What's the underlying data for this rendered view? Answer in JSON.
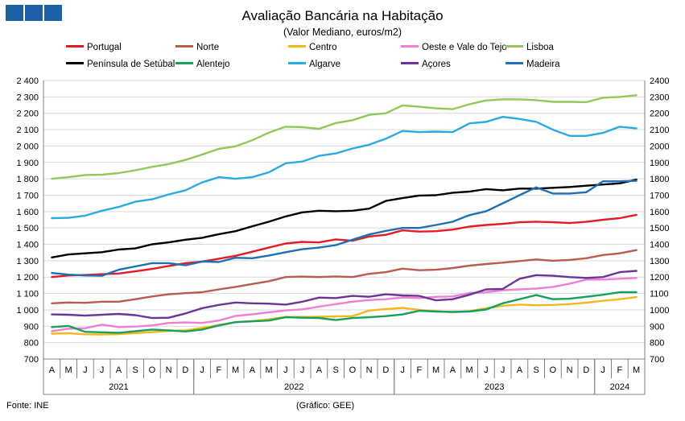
{
  "header": {
    "logo_icon": "ine-logo-squares",
    "title": "Avaliação Bancária na Habitação",
    "subtitle": "(Valor Mediano, euros/m2)"
  },
  "footer": {
    "source": "Fonte: INE",
    "credit": "(Gráfico: GEE)"
  },
  "chart_data": {
    "type": "line",
    "title": "Avaliação Bancária na Habitação",
    "subtitle": "(Valor Mediano, euros/m2)",
    "ylim": [
      700,
      2400
    ],
    "y_ticks_left": [
      "700",
      "800",
      "900",
      "1 000",
      "1 100",
      "1 200",
      "1 300",
      "1 400",
      "1 500",
      "1 600",
      "1 700",
      "1 800",
      "1 900",
      "2 000",
      "2 100",
      "2 200",
      "2 300",
      "2 400"
    ],
    "y_ticks_right": [
      "700",
      "800",
      "900",
      "1000",
      "1100",
      "1200",
      "1300",
      "1400",
      "1500",
      "1600",
      "1700",
      "1800",
      "1900",
      "2000",
      "2100",
      "2200",
      "2300",
      "2400"
    ],
    "categories": [
      "A",
      "M",
      "J",
      "J",
      "A",
      "S",
      "O",
      "N",
      "D",
      "J",
      "F",
      "M",
      "A",
      "M",
      "J",
      "J",
      "A",
      "S",
      "O",
      "N",
      "D",
      "J",
      "F",
      "M",
      "A",
      "M",
      "J",
      "J",
      "A",
      "S",
      "O",
      "N",
      "D",
      "J",
      "F",
      "M"
    ],
    "years": [
      {
        "label": "2021",
        "start": 0,
        "end": 9
      },
      {
        "label": "2022",
        "start": 9,
        "end": 21
      },
      {
        "label": "2023",
        "start": 21,
        "end": 33
      },
      {
        "label": "2024",
        "start": 33,
        "end": 36
      }
    ],
    "grid": true,
    "series": [
      {
        "name": "Portugal",
        "color": "#e31b23",
        "legend_col": 0,
        "legend_row": 0,
        "values": [
          1200,
          1210,
          1213,
          1218,
          1222,
          1235,
          1250,
          1268,
          1285,
          1295,
          1312,
          1330,
          1355,
          1380,
          1405,
          1415,
          1412,
          1430,
          1422,
          1448,
          1458,
          1485,
          1478,
          1480,
          1490,
          1508,
          1518,
          1525,
          1535,
          1538,
          1535,
          1530,
          1537,
          1550,
          1560,
          1580
        ]
      },
      {
        "name": "Norte",
        "color": "#bc5a4e",
        "legend_col": 1,
        "legend_row": 0,
        "values": [
          1040,
          1045,
          1043,
          1050,
          1050,
          1065,
          1082,
          1095,
          1102,
          1108,
          1125,
          1140,
          1158,
          1175,
          1200,
          1203,
          1200,
          1204,
          1200,
          1220,
          1230,
          1252,
          1242,
          1245,
          1255,
          1270,
          1280,
          1288,
          1298,
          1308,
          1300,
          1305,
          1315,
          1335,
          1345,
          1365
        ]
      },
      {
        "name": "Centro",
        "color": "#f2b81c",
        "legend_col": 2,
        "legend_row": 0,
        "values": [
          855,
          857,
          851,
          850,
          852,
          858,
          864,
          872,
          875,
          890,
          908,
          925,
          932,
          942,
          957,
          957,
          958,
          960,
          962,
          996,
          1005,
          1012,
          1000,
          992,
          985,
          992,
          1010,
          1025,
          1032,
          1028,
          1030,
          1035,
          1044,
          1055,
          1065,
          1078
        ]
      },
      {
        "name": "Oeste e Vale do Tejo",
        "color": "#ee7fd4",
        "legend_col": 3,
        "legend_row": 0,
        "values": [
          870,
          885,
          888,
          910,
          895,
          898,
          905,
          920,
          923,
          920,
          935,
          963,
          973,
          985,
          997,
          1003,
          1020,
          1035,
          1050,
          1060,
          1065,
          1076,
          1072,
          1080,
          1082,
          1103,
          1107,
          1120,
          1125,
          1130,
          1140,
          1160,
          1185,
          1185,
          1190,
          1195
        ]
      },
      {
        "name": "Lisboa",
        "color": "#92c85a",
        "legend_col": 4,
        "legend_row": 0,
        "values": [
          1800,
          1810,
          1823,
          1825,
          1835,
          1852,
          1873,
          1890,
          1915,
          1948,
          1983,
          1998,
          2035,
          2082,
          2118,
          2115,
          2105,
          2140,
          2158,
          2190,
          2200,
          2248,
          2240,
          2230,
          2225,
          2255,
          2278,
          2285,
          2285,
          2280,
          2270,
          2270,
          2268,
          2295,
          2300,
          2310
        ]
      },
      {
        "name": "Península de Setúbal",
        "color": "#000000",
        "legend_col": 0,
        "legend_row": 1,
        "values": [
          1320,
          1338,
          1345,
          1352,
          1368,
          1375,
          1400,
          1412,
          1428,
          1440,
          1462,
          1480,
          1510,
          1538,
          1570,
          1595,
          1605,
          1602,
          1605,
          1618,
          1665,
          1682,
          1698,
          1700,
          1715,
          1722,
          1737,
          1730,
          1740,
          1740,
          1745,
          1750,
          1758,
          1765,
          1772,
          1795
        ]
      },
      {
        "name": "Alentejo",
        "color": "#16a05b",
        "legend_col": 1,
        "legend_row": 1,
        "values": [
          895,
          902,
          866,
          863,
          860,
          870,
          880,
          875,
          868,
          880,
          905,
          925,
          930,
          935,
          955,
          952,
          950,
          938,
          950,
          955,
          962,
          972,
          995,
          990,
          988,
          990,
          1002,
          1040,
          1065,
          1090,
          1065,
          1068,
          1080,
          1092,
          1108,
          1108
        ]
      },
      {
        "name": "Algarve",
        "color": "#29aae1",
        "legend_col": 2,
        "legend_row": 1,
        "values": [
          1560,
          1562,
          1575,
          1605,
          1628,
          1660,
          1675,
          1705,
          1730,
          1778,
          1810,
          1800,
          1810,
          1840,
          1895,
          1905,
          1940,
          1955,
          1985,
          2008,
          2045,
          2092,
          2085,
          2088,
          2085,
          2138,
          2148,
          2178,
          2165,
          2148,
          2100,
          2062,
          2062,
          2080,
          2118,
          2108
        ]
      },
      {
        "name": "Açores",
        "color": "#6a3597",
        "legend_col": 3,
        "legend_row": 1,
        "values": [
          972,
          970,
          965,
          970,
          975,
          968,
          950,
          952,
          978,
          1010,
          1030,
          1045,
          1040,
          1038,
          1032,
          1050,
          1075,
          1072,
          1085,
          1080,
          1095,
          1088,
          1085,
          1058,
          1065,
          1092,
          1125,
          1128,
          1190,
          1212,
          1208,
          1200,
          1195,
          1200,
          1230,
          1238
        ]
      },
      {
        "name": "Madeira",
        "color": "#1f6fb5",
        "legend_col": 4,
        "legend_row": 1,
        "values": [
          1225,
          1215,
          1210,
          1208,
          1245,
          1265,
          1285,
          1285,
          1272,
          1295,
          1292,
          1318,
          1315,
          1332,
          1352,
          1370,
          1380,
          1395,
          1428,
          1460,
          1482,
          1500,
          1500,
          1518,
          1538,
          1578,
          1602,
          1650,
          1700,
          1748,
          1710,
          1710,
          1718,
          1785,
          1785,
          1788
        ]
      }
    ]
  }
}
